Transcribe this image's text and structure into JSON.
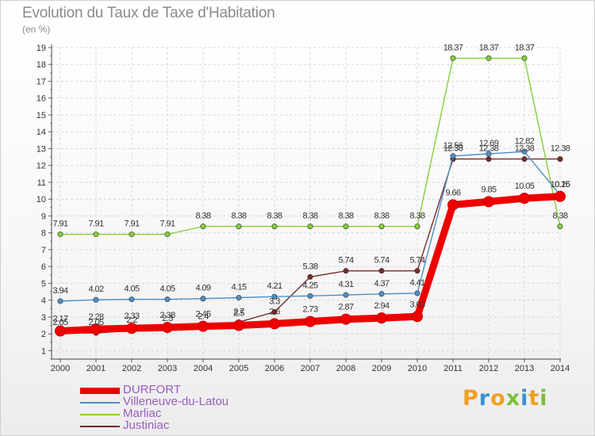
{
  "title": "Evolution du Taux de Taxe d'Habitation",
  "unit": "(en %)",
  "brand": "Proxiti",
  "chart_data": {
    "type": "line",
    "title": "Evolution du Taux de Taxe d'Habitation",
    "ylabel": "(en %)",
    "x": [
      "2000",
      "2001",
      "2002",
      "2003",
      "2004",
      "2005",
      "2006",
      "2007",
      "2008",
      "2009",
      "2010",
      "2011",
      "2012",
      "2013",
      "2014"
    ],
    "ylim": [
      1,
      19
    ],
    "yticks": [
      1,
      2,
      3,
      4,
      5,
      6,
      7,
      8,
      9,
      10,
      11,
      12,
      13,
      14,
      15,
      16,
      17,
      18,
      19
    ],
    "grid": true,
    "legend_position": "bottom-left",
    "series": [
      {
        "name": "DURFORT",
        "color": "#ee0000",
        "values": [
          2.17,
          2.28,
          2.33,
          2.38,
          2.45,
          2.5,
          2.6,
          2.73,
          2.87,
          2.94,
          3.03,
          9.66,
          9.85,
          10.05,
          10.16
        ],
        "labels": [
          "2.17",
          "2.28",
          "2.33",
          "2.38",
          "2.45",
          "2.5",
          "2.6",
          "2.73",
          "2.87",
          "2.94",
          "3.03",
          "9.66",
          "9.85",
          "10.05",
          "10.16"
        ]
      },
      {
        "name": "Villeneuve-du-Latou",
        "color": "#4d8fc7",
        "values": [
          3.94,
          4.02,
          4.05,
          4.05,
          4.09,
          4.15,
          4.21,
          4.25,
          4.31,
          4.37,
          4.41,
          12.56,
          12.69,
          12.82,
          10.25
        ],
        "labels": [
          "3.94",
          "4.02",
          "4.05",
          "4.05",
          "4.09",
          "4.15",
          "4.21",
          "4.25",
          "4.31",
          "4.37",
          "4.41",
          "12.56",
          "12.69",
          "12.82",
          "10.25"
        ]
      },
      {
        "name": "Marliac",
        "color": "#85cf3c",
        "values": [
          7.91,
          7.91,
          7.91,
          7.91,
          8.38,
          8.38,
          8.38,
          8.38,
          8.38,
          8.38,
          8.38,
          18.37,
          18.37,
          18.37,
          8.38
        ],
        "labels": [
          "7.91",
          "7.91",
          "7.91",
          "7.91",
          "8.38",
          "8.38",
          "8.38",
          "8.38",
          "8.38",
          "8.38",
          "8.38",
          "18.37",
          "18.37",
          "18.37",
          "8.38"
        ]
      },
      {
        "name": "Justiniac",
        "color": "#7a2a2a",
        "values": [
          2.05,
          2.05,
          2.2,
          2.3,
          2.4,
          2.7,
          3.3,
          5.38,
          5.74,
          5.74,
          5.74,
          12.38,
          12.38,
          12.38,
          12.38
        ],
        "labels": [
          "2.05",
          "2.05",
          "2.2",
          "2.3",
          "2.4",
          "2.7",
          "3.3",
          "5.38",
          "5.74",
          "5.74",
          "5.74",
          "12.38",
          "12.38",
          "12.38",
          "12.38"
        ]
      }
    ]
  }
}
